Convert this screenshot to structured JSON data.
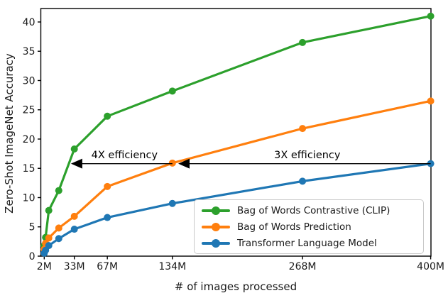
{
  "chart_data": {
    "type": "line",
    "title": "",
    "xlabel": "# of images processed",
    "ylabel": "Zero-Shot ImageNet Accuracy",
    "x_unit": "millions of images",
    "x": [
      2,
      3.4,
      6.7,
      17,
      33,
      67,
      134,
      268,
      400
    ],
    "series": [
      {
        "name": "Bag of Words Contrastive (CLIP)",
        "color": "#2ca02c",
        "values": [
          1.8,
          3.2,
          7.8,
          11.2,
          18.3,
          23.9,
          28.2,
          36.5,
          41.0
        ]
      },
      {
        "name": "Bag of Words Prediction",
        "color": "#ff7f0e",
        "values": [
          1.2,
          2.2,
          3.1,
          4.8,
          6.8,
          11.9,
          15.9,
          21.8,
          26.5
        ]
      },
      {
        "name": "Transformer Language Model",
        "color": "#1f77b4",
        "values": [
          0.5,
          1.0,
          1.8,
          3.0,
          4.6,
          6.6,
          9.0,
          12.8,
          15.8
        ]
      }
    ],
    "x_ticks": {
      "values": [
        2,
        33,
        67,
        134,
        268,
        400
      ],
      "labels": [
        "2M",
        "33M",
        "67M",
        "134M",
        "268M",
        "400M"
      ]
    },
    "y_ticks": {
      "values": [
        0,
        5,
        10,
        15,
        20,
        25,
        30,
        35,
        40
      ],
      "labels": [
        "0",
        "5",
        "10",
        "15",
        "20",
        "25",
        "30",
        "35",
        "40"
      ]
    },
    "xlim": [
      -1.5,
      400.3
    ],
    "ylim": [
      0,
      42.3
    ],
    "grid": false,
    "legend_position": "lower right",
    "annotations": [
      {
        "label": "4X efficiency",
        "y": 15.8,
        "arrow_from_x": 134,
        "arrow_to_x": 29.5
      },
      {
        "label": "3X efficiency",
        "y": 15.8,
        "arrow_from_x": 400,
        "arrow_to_x": 140
      }
    ],
    "axis_color": "#000000",
    "text_color": "#1a1a1a",
    "arrow_color": "#000000"
  }
}
